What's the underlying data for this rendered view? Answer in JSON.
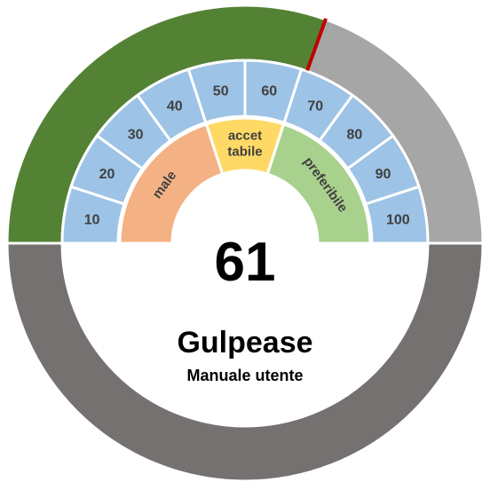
{
  "chart_data": {
    "type": "gauge",
    "value": 61,
    "value_label": "61",
    "min": 0,
    "max": 100,
    "title": "Gulpease",
    "subtitle": "Manuale utente",
    "ticks": [
      "10",
      "20",
      "30",
      "40",
      "50",
      "60",
      "70",
      "80",
      "90",
      "100"
    ],
    "zones": [
      {
        "name": "male",
        "lines": [
          "male"
        ],
        "from": 0,
        "to": 40,
        "color": "#F4B183"
      },
      {
        "name": "accettabile",
        "lines": [
          "accet",
          "tabile"
        ],
        "from": 40,
        "to": 60,
        "color": "#FFD966"
      },
      {
        "name": "preferibile",
        "lines": [
          "preferibile"
        ],
        "from": 60,
        "to": 100,
        "color": "#A9D18E"
      }
    ],
    "colors": {
      "filled": "#548235",
      "remaining": "#A6A6A6",
      "lower_ring": "#767171",
      "tick_cells": "#9DC3E6",
      "needle": "#C00000"
    }
  }
}
